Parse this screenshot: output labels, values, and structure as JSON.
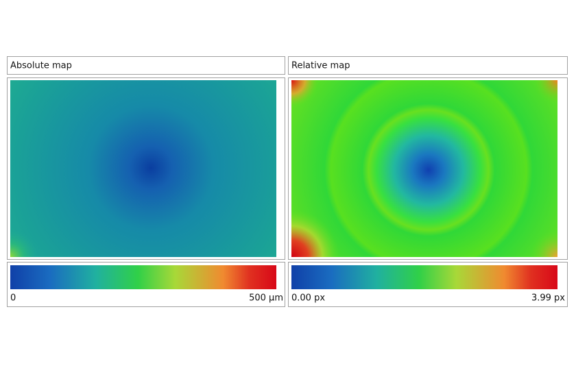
{
  "panels": [
    {
      "title": "Absolute map",
      "scale_min": "0",
      "scale_max": "500 µm"
    },
    {
      "title": "Relative map",
      "scale_min": "0.00 px",
      "scale_max": "3.99 px"
    }
  ]
}
